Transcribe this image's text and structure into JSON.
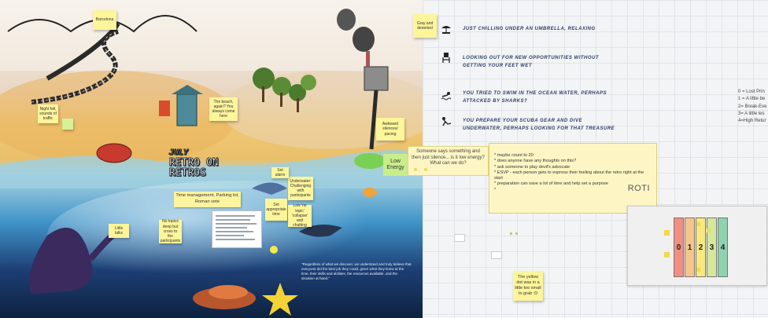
{
  "board": {
    "stickies": [
      {
        "id": "barcelona",
        "text": "Barcelona"
      },
      {
        "id": "nightfall",
        "text": "Night fall, sounds of traffic"
      },
      {
        "id": "quote-sky",
        "text": "Gray and deserted"
      },
      {
        "id": "beach",
        "text": "The beach, again? You always come here"
      },
      {
        "id": "awkward",
        "text": "Awkward silences/ pacing"
      },
      {
        "id": "underwater",
        "text": "Underwater: Challenging with participants"
      },
      {
        "id": "appropriate",
        "text": "Set appropriate time"
      },
      {
        "id": "alarm",
        "text": "Set alarm"
      },
      {
        "id": "no-topics",
        "text": "No topics deep but cross to the participants"
      },
      {
        "id": "little-talks",
        "text": "Little talks"
      },
      {
        "id": "collapse",
        "text": "Low 'no topic' 'collapse' and chatting"
      },
      {
        "id": "yellow-dot",
        "text": "The yellow dot was in a little too small to grab :D"
      }
    ],
    "time_management": "Time management, Parking lot, Roman vote",
    "retro_title_prefix": "JULY",
    "retro_title_line1": "RETRO ON",
    "retro_title_line2": "RETROS",
    "quote": "\"Regardless of what we discover, we understand and truly believe that everyone did the best job they could, given what they knew at the time, their skills and abilities, the resources available, and the situation at hand.\"",
    "silence_note": "Someone says something and then just silence... is it low energy? What can we do?",
    "low_energy": "Low Energy",
    "legend": [
      {
        "icon": "umbrella-icon",
        "text": "Just chilling under an umbrella, relaxing"
      },
      {
        "icon": "lifeguard-icon",
        "text": "Looking out for new opportunities without getting your feet wet"
      },
      {
        "icon": "swimmer-icon",
        "text": "You tried to swim in the ocean water, perhaps attacked by sharks?"
      },
      {
        "icon": "diver-icon",
        "text": "You prepare your scuba gear and dive underwater, perhaps looking for that treasure"
      }
    ],
    "roti_note": {
      "items": [
        "maybe count to 20",
        "does anyone have any thoughts on this?",
        "ask someone to play devil's advocate",
        "ESVP - each person gets to express their feeling about the retro right at the start",
        "preparation can save a lot of time and help set a purpose",
        ""
      ],
      "title": "ROTI"
    },
    "roti_scale": [
      "0 = Lost Prin",
      "1 = A little be",
      "2= Break-Eve",
      "3= A little les",
      "4=High Retur"
    ],
    "roti_bars": [
      {
        "label": "0",
        "color": "#f08f82"
      },
      {
        "label": "1",
        "color": "#f7c58b"
      },
      {
        "label": "2",
        "color": "#f7e97f"
      },
      {
        "label": "3",
        "color": "#d4e89a"
      },
      {
        "label": "4",
        "color": "#8fd1b0"
      }
    ]
  },
  "colors": {
    "sticky": "#fdf59a",
    "legend_text": "#2c3d6b",
    "ocean": "#3d8ec4",
    "sand": "#f0c873"
  }
}
